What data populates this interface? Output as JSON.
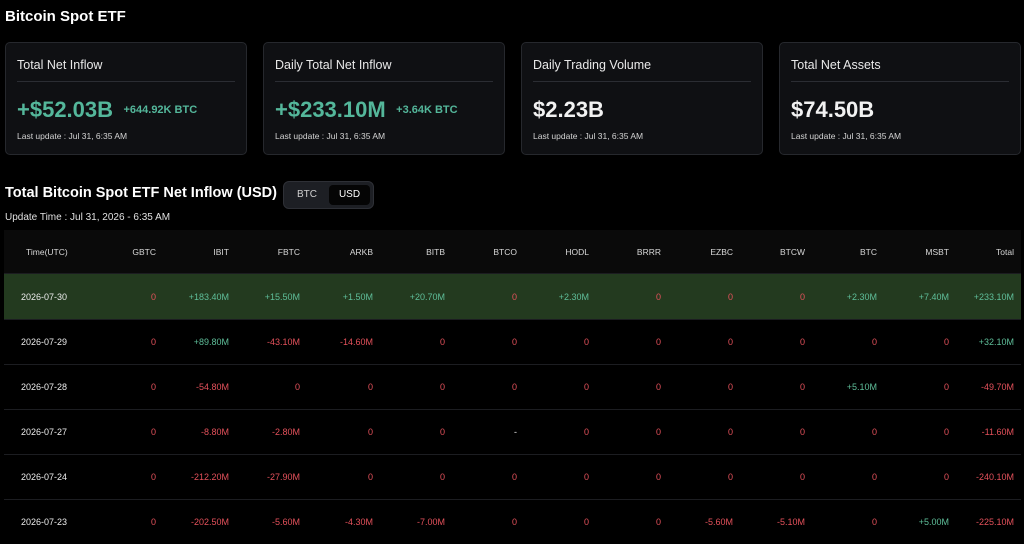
{
  "page_title": "Bitcoin Spot ETF",
  "cards": [
    {
      "title": "Total Net Inflow",
      "value": "+$52.03B",
      "sub": "+644.92K BTC",
      "update": "Last update : Jul 31, 6:35 AM",
      "color": "#54b79b"
    },
    {
      "title": "Daily Total Net Inflow",
      "value": "+$233.10M",
      "sub": "+3.64K BTC",
      "update": "Last update : Jul 31, 6:35 AM",
      "color": "#54b79b"
    },
    {
      "title": "Daily Trading Volume",
      "value": "$2.23B",
      "sub": "",
      "update": "Last update : Jul 31, 6:35 AM",
      "color": "#f2f2f2"
    },
    {
      "title": "Total Net Assets",
      "value": "$74.50B",
      "sub": "",
      "update": "Last update : Jul 31, 6:35 AM",
      "color": "#f2f2f2"
    }
  ],
  "section_title": "Total Bitcoin Spot ETF Net Inflow (USD)",
  "toggle": {
    "btc": "BTC",
    "usd": "USD",
    "selected": "USD"
  },
  "update_time": "Update Time : Jul 31, 2026 - 6:35 AM",
  "table": {
    "columns": [
      "Time(UTC)",
      "GBTC",
      "IBIT",
      "FBTC",
      "ARKB",
      "BITB",
      "BTCO",
      "HODL",
      "BRRR",
      "EZBC",
      "BTCW",
      "BTC",
      "MSBT",
      "Total"
    ],
    "rows": [
      {
        "highlight": true,
        "cells": [
          "2026-07-30",
          "0",
          "+183.40M",
          "+15.50M",
          "+1.50M",
          "+20.70M",
          "0",
          "+2.30M",
          "0",
          "0",
          "0",
          "+2.30M",
          "+7.40M",
          "+233.10M"
        ]
      },
      {
        "highlight": false,
        "cells": [
          "2026-07-29",
          "0",
          "+89.80M",
          "-43.10M",
          "-14.60M",
          "0",
          "0",
          "0",
          "0",
          "0",
          "0",
          "0",
          "0",
          "+32.10M"
        ]
      },
      {
        "highlight": false,
        "cells": [
          "2026-07-28",
          "0",
          "-54.80M",
          "0",
          "0",
          "0",
          "0",
          "0",
          "0",
          "0",
          "0",
          "+5.10M",
          "0",
          "-49.70M"
        ]
      },
      {
        "highlight": false,
        "cells": [
          "2026-07-27",
          "0",
          "-8.80M",
          "-2.80M",
          "0",
          "0",
          "-",
          "0",
          "0",
          "0",
          "0",
          "0",
          "0",
          "-11.60M"
        ]
      },
      {
        "highlight": false,
        "cells": [
          "2026-07-24",
          "0",
          "-212.20M",
          "-27.90M",
          "0",
          "0",
          "0",
          "0",
          "0",
          "0",
          "0",
          "0",
          "0",
          "-240.10M"
        ]
      },
      {
        "highlight": false,
        "cells": [
          "2026-07-23",
          "0",
          "-202.50M",
          "-5.60M",
          "-4.30M",
          "-7.00M",
          "0",
          "0",
          "0",
          "-5.60M",
          "-5.10M",
          "0",
          "+5.00M",
          "-225.10M"
        ]
      }
    ]
  },
  "colors": {
    "positive": "#5fbf9a",
    "negative": "#e4515b",
    "highlight_row": "#233a1f"
  }
}
